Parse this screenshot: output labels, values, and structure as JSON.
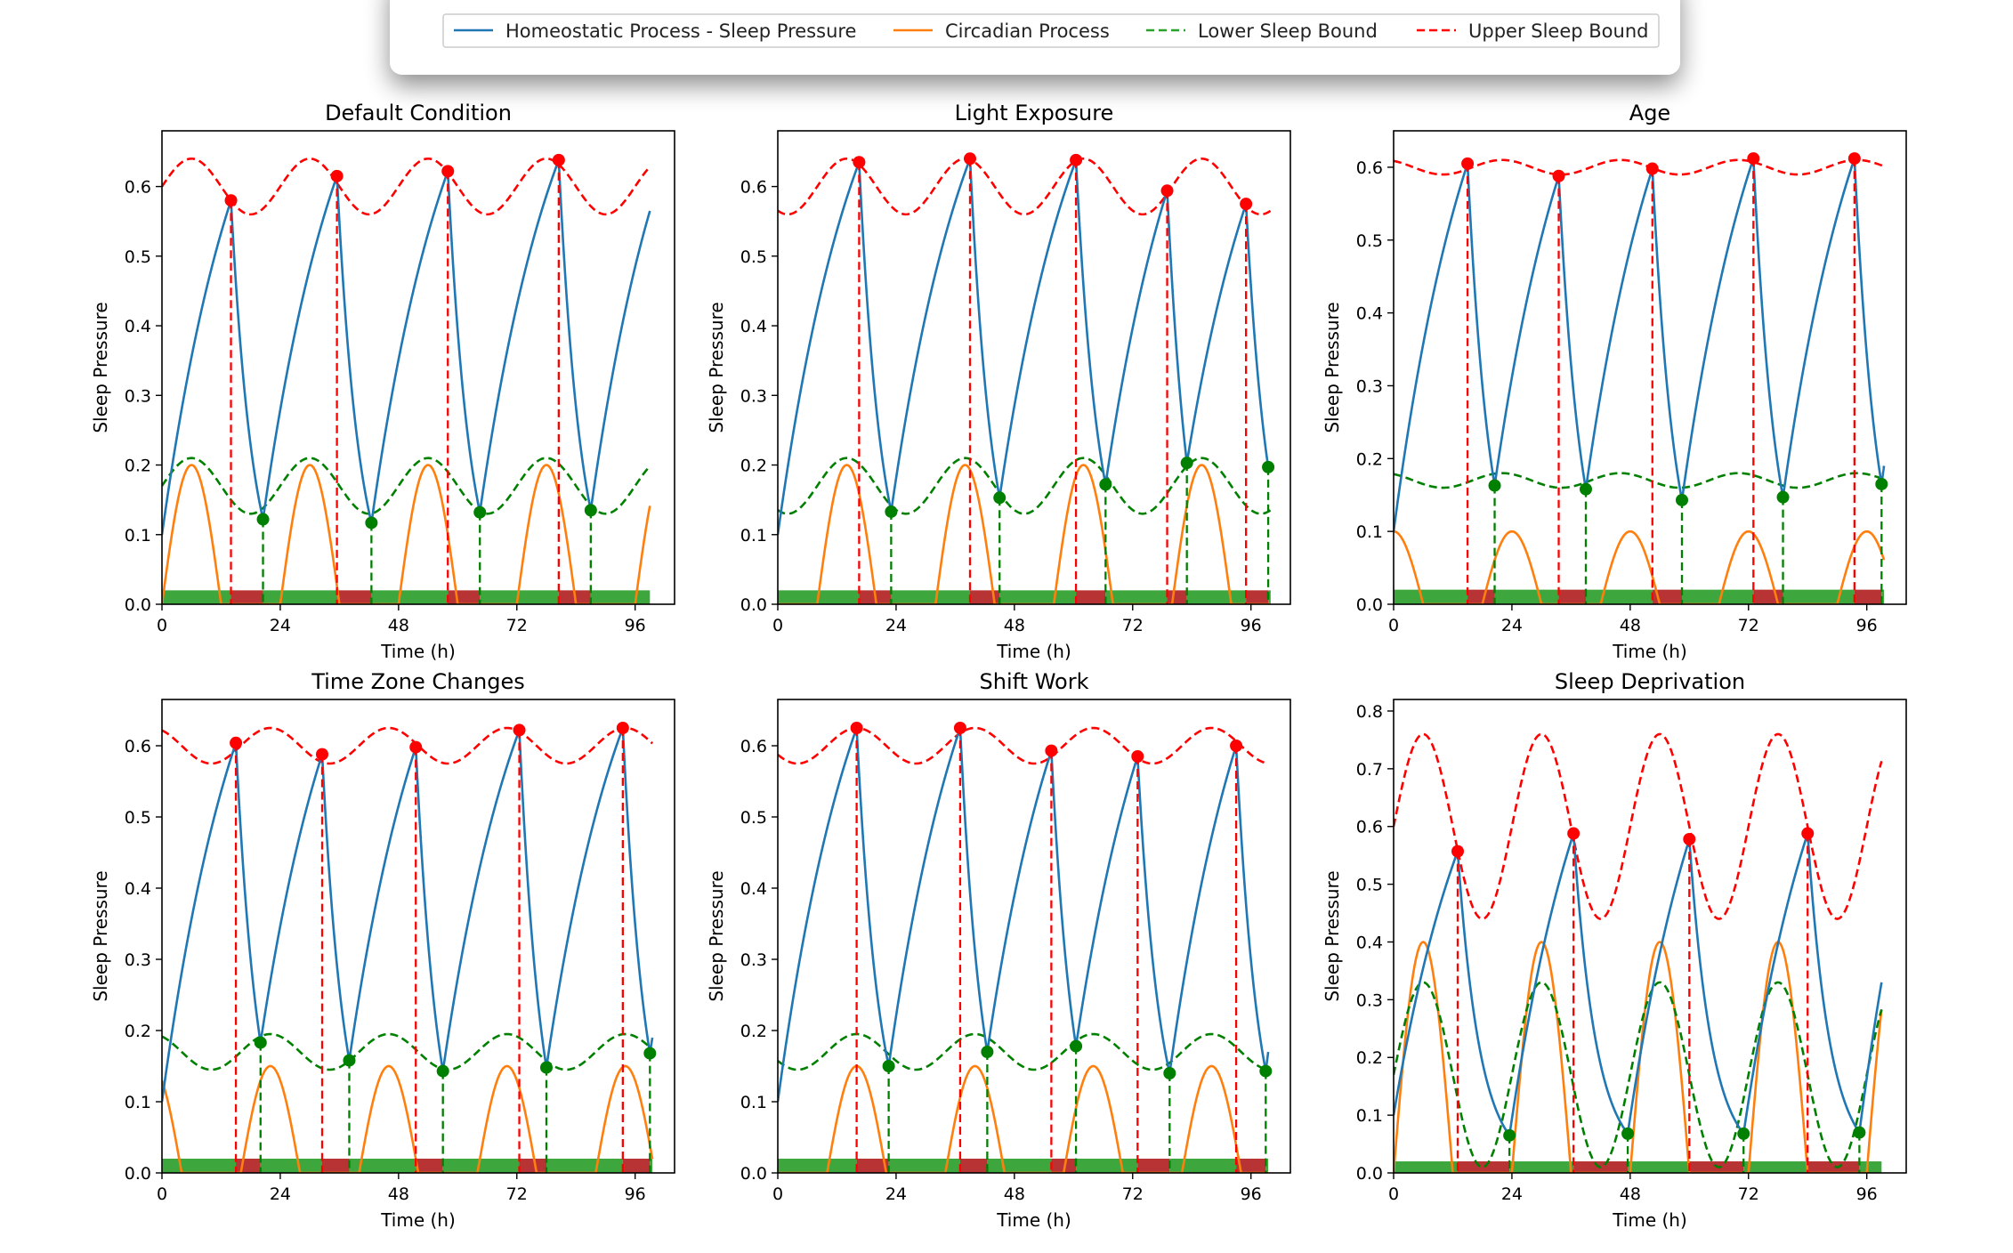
{
  "legend": {
    "items": [
      {
        "label": "Homeostatic Process - Sleep Pressure",
        "color": "#1f77b4",
        "style": "solid"
      },
      {
        "label": "Circadian Process",
        "color": "#ff7f0e",
        "style": "solid"
      },
      {
        "label": "Lower Sleep Bound",
        "color": "#2ca02c",
        "style": "dashed"
      },
      {
        "label": "Upper Sleep Bound",
        "color": "#ff0000",
        "style": "dashed"
      }
    ],
    "placement": "top-center"
  },
  "colors": {
    "homeostatic": "#1f77b4",
    "circadian": "#ff7f0e",
    "lower": "#008000",
    "upper": "#ff0000",
    "wake_bar": "#2ca02c",
    "sleep_bar": "#b22222"
  },
  "chart_data": [
    {
      "type": "line",
      "title": "Default Condition",
      "xlabel": "Time (h)",
      "ylabel": "Sleep Pressure",
      "xlim": [
        0,
        104
      ],
      "ylim": [
        0,
        0.68
      ],
      "xticks": [
        0,
        24,
        48,
        72,
        96
      ],
      "yticks": [
        0.0,
        0.1,
        0.2,
        0.3,
        0.4,
        0.5,
        0.6
      ],
      "ytick_labels": [
        "0.0",
        "0.1",
        "0.2",
        "0.3",
        "0.4",
        "0.5",
        "0.6"
      ],
      "grid": false,
      "circadian": {
        "base": 0.0,
        "amp": 0.2,
        "period": 24,
        "peak": 6
      },
      "bounds": {
        "mean": 0.17,
        "amp": 0.04,
        "period": 24,
        "peak": 6,
        "upper_offset": 0.43
      },
      "onsets": [
        [
          14,
          0.58
        ],
        [
          35.5,
          0.615
        ],
        [
          58,
          0.622
        ],
        [
          80.5,
          0.638
        ]
      ],
      "wakes": [
        [
          20.5,
          0.122
        ],
        [
          42.5,
          0.117
        ],
        [
          64.5,
          0.132
        ],
        [
          87,
          0.135
        ]
      ],
      "end": [
        99,
        0.565
      ],
      "start_value": 0.1
    },
    {
      "type": "line",
      "title": "Light Exposure",
      "xlabel": "Time (h)",
      "ylabel": "Sleep Pressure",
      "xlim": [
        0,
        104
      ],
      "ylim": [
        0,
        0.68
      ],
      "xticks": [
        0,
        24,
        48,
        72,
        96
      ],
      "yticks": [
        0.0,
        0.1,
        0.2,
        0.3,
        0.4,
        0.5,
        0.6
      ],
      "ytick_labels": [
        "0.0",
        "0.1",
        "0.2",
        "0.3",
        "0.4",
        "0.5",
        "0.6"
      ],
      "grid": false,
      "circadian": {
        "base": 0.0,
        "amp": 0.2,
        "period": 24,
        "peak": 14
      },
      "bounds": {
        "mean": 0.17,
        "amp": 0.04,
        "period": 24,
        "peak": 14,
        "upper_offset": 0.43
      },
      "onsets": [
        [
          16.5,
          0.635
        ],
        [
          39,
          0.64
        ],
        [
          60.5,
          0.638
        ],
        [
          79,
          0.594
        ],
        [
          95,
          0.575
        ]
      ],
      "wakes": [
        [
          23,
          0.133
        ],
        [
          45,
          0.153
        ],
        [
          66.5,
          0.172
        ],
        [
          83,
          0.203
        ],
        [
          99.5,
          0.197
        ]
      ],
      "end": [
        100,
        0.2
      ],
      "start_value": 0.1
    },
    {
      "type": "line",
      "title": "Age",
      "xlabel": "Time (h)",
      "ylabel": "Sleep Pressure",
      "xlim": [
        0,
        104
      ],
      "ylim": [
        0,
        0.65
      ],
      "xticks": [
        0,
        24,
        48,
        72,
        96
      ],
      "yticks": [
        0.0,
        0.1,
        0.2,
        0.3,
        0.4,
        0.5,
        0.6
      ],
      "ytick_labels": [
        "0.0",
        "0.1",
        "0.2",
        "0.3",
        "0.4",
        "0.5",
        "0.6"
      ],
      "grid": false,
      "circadian": {
        "base": 0.0,
        "amp": 0.1,
        "period": 24,
        "peak": 0
      },
      "bounds": {
        "mean": 0.17,
        "amp": 0.01,
        "period": 24,
        "peak": 22,
        "upper_offset": 0.43
      },
      "onsets": [
        [
          15,
          0.605
        ],
        [
          33.5,
          0.588
        ],
        [
          52.5,
          0.598
        ],
        [
          73,
          0.612
        ],
        [
          93.5,
          0.612
        ]
      ],
      "wakes": [
        [
          20.5,
          0.163
        ],
        [
          39,
          0.158
        ],
        [
          58.5,
          0.143
        ],
        [
          79,
          0.147
        ],
        [
          99,
          0.165
        ]
      ],
      "end": [
        99.5,
        0.19
      ],
      "start_value": 0.1
    },
    {
      "type": "line",
      "title": "Time Zone Changes",
      "xlabel": "Time (h)",
      "ylabel": "Sleep Pressure",
      "xlim": [
        0,
        104
      ],
      "ylim": [
        0,
        0.665
      ],
      "xticks": [
        0,
        24,
        48,
        72,
        96
      ],
      "yticks": [
        0.0,
        0.1,
        0.2,
        0.3,
        0.4,
        0.5,
        0.6
      ],
      "ytick_labels": [
        "0.0",
        "0.1",
        "0.2",
        "0.3",
        "0.4",
        "0.5",
        "0.6"
      ],
      "grid": false,
      "circadian": {
        "base": 0.0,
        "amp": 0.15,
        "period": 24,
        "peak": 22
      },
      "bounds": {
        "mean": 0.17,
        "amp": 0.025,
        "period": 24,
        "peak": 22,
        "upper_offset": 0.43
      },
      "onsets": [
        [
          15,
          0.604
        ],
        [
          32.5,
          0.588
        ],
        [
          51.5,
          0.598
        ],
        [
          72.5,
          0.622
        ],
        [
          93.5,
          0.625
        ]
      ],
      "wakes": [
        [
          20,
          0.183
        ],
        [
          38,
          0.158
        ],
        [
          57,
          0.143
        ],
        [
          78,
          0.148
        ],
        [
          99,
          0.168
        ]
      ],
      "end": [
        99.5,
        0.19
      ],
      "start_value": 0.1
    },
    {
      "type": "line",
      "title": "Shift Work",
      "xlabel": "Time (h)",
      "ylabel": "Sleep Pressure",
      "xlim": [
        0,
        104
      ],
      "ylim": [
        0,
        0.665
      ],
      "xticks": [
        0,
        24,
        48,
        72,
        96
      ],
      "yticks": [
        0.0,
        0.1,
        0.2,
        0.3,
        0.4,
        0.5,
        0.6
      ],
      "ytick_labels": [
        "0.0",
        "0.1",
        "0.2",
        "0.3",
        "0.4",
        "0.5",
        "0.6"
      ],
      "grid": false,
      "circadian": {
        "base": 0.0,
        "amp": 0.15,
        "period": 24,
        "peak": 16
      },
      "bounds": {
        "mean": 0.17,
        "amp": 0.025,
        "period": 24,
        "peak": 16,
        "upper_offset": 0.43
      },
      "onsets": [
        [
          16,
          0.625
        ],
        [
          37,
          0.625
        ],
        [
          55.5,
          0.593
        ],
        [
          73,
          0.585
        ],
        [
          93,
          0.6
        ]
      ],
      "wakes": [
        [
          22.5,
          0.15
        ],
        [
          42.5,
          0.17
        ],
        [
          60.5,
          0.178
        ],
        [
          79.5,
          0.14
        ],
        [
          99,
          0.143
        ]
      ],
      "end": [
        99.5,
        0.17
      ],
      "start_value": 0.1
    },
    {
      "type": "line",
      "title": "Sleep Deprivation",
      "xlabel": "Time (h)",
      "ylabel": "Sleep Pressure",
      "xlim": [
        0,
        104
      ],
      "ylim": [
        0,
        0.82
      ],
      "xticks": [
        0,
        24,
        48,
        72,
        96
      ],
      "yticks": [
        0.0,
        0.1,
        0.2,
        0.3,
        0.4,
        0.5,
        0.6,
        0.7,
        0.8
      ],
      "ytick_labels": [
        "0.0",
        "0.1",
        "0.2",
        "0.3",
        "0.4",
        "0.5",
        "0.6",
        "0.7",
        "0.8"
      ],
      "grid": false,
      "circadian": {
        "base": 0.0,
        "amp": 0.4,
        "period": 24,
        "peak": 6
      },
      "bounds": {
        "mean": 0.17,
        "amp": 0.16,
        "period": 24,
        "peak": 6,
        "upper_offset": 0.43
      },
      "onsets": [
        [
          13,
          0.557
        ],
        [
          36.5,
          0.588
        ],
        [
          60,
          0.578
        ],
        [
          84,
          0.588
        ]
      ],
      "wakes": [
        [
          23.5,
          0.065
        ],
        [
          47.5,
          0.068
        ],
        [
          71,
          0.068
        ],
        [
          94.5,
          0.07
        ]
      ],
      "end": [
        99,
        0.33
      ],
      "start_value": 0.1
    }
  ]
}
